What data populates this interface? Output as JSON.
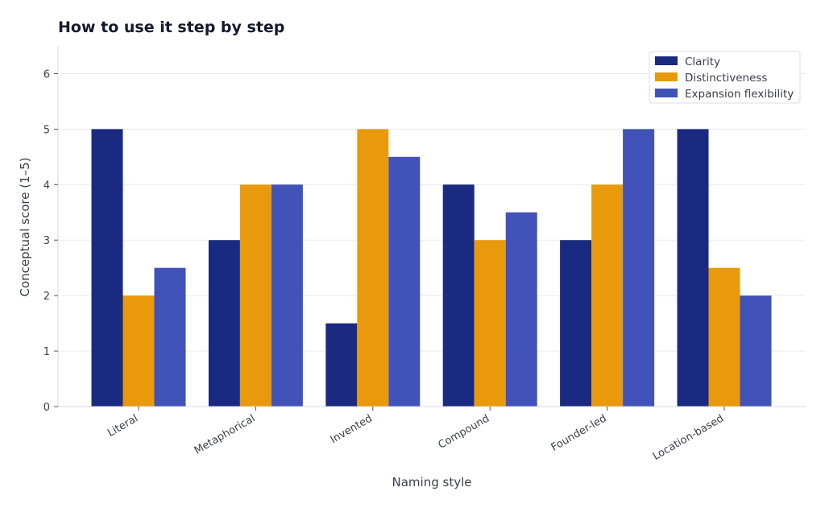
{
  "chart_data": {
    "type": "bar",
    "title": "How to use it step by step",
    "xlabel": "Naming style",
    "ylabel": "Conceptual score (1–5)",
    "categories": [
      "Literal",
      "Metaphorical",
      "Invented",
      "Compound",
      "Founder-led",
      "Location-based"
    ],
    "series": [
      {
        "name": "Clarity",
        "color": "#1a2a80",
        "values": [
          5,
          3,
          1.5,
          4,
          3,
          5
        ]
      },
      {
        "name": "Distinctiveness",
        "color": "#e99a0c",
        "values": [
          2,
          4,
          5,
          3,
          4,
          2.5
        ]
      },
      {
        "name": "Expansion flexibility",
        "color": "#4153b9",
        "values": [
          2.5,
          4,
          4.5,
          3.5,
          5,
          2
        ]
      }
    ],
    "ylim": [
      0,
      6.5
    ],
    "yticks": [
      0,
      1,
      2,
      3,
      4,
      5,
      6
    ],
    "grid": true,
    "legend_position": "top-right"
  }
}
